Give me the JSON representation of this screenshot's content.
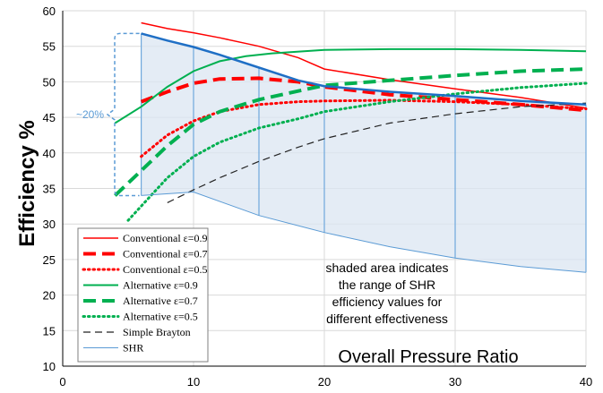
{
  "chart_data": {
    "type": "line",
    "title": "",
    "xlabel": "Overall Pressure Ratio",
    "ylabel": "Efficiency %",
    "xlim": [
      0,
      40
    ],
    "ylim": [
      10,
      60
    ],
    "xticks": [
      0,
      10,
      20,
      30,
      40
    ],
    "yticks": [
      10,
      15,
      20,
      25,
      30,
      35,
      40,
      45,
      50,
      55,
      60
    ],
    "grid": true,
    "legend_position": "bottom-left",
    "series": [
      {
        "name": "Conventional ε=0.9",
        "color": "#ff0000",
        "style": "solid",
        "width": 1.5,
        "x": [
          6,
          8,
          10,
          12,
          15,
          18,
          20,
          25,
          30,
          35,
          40
        ],
        "y": [
          58.3,
          57.5,
          56.9,
          56.2,
          55.0,
          53.4,
          51.8,
          50.3,
          49.0,
          47.8,
          46.3
        ]
      },
      {
        "name": "Conventional ε=0.7",
        "color": "#ff0000",
        "style": "dash-heavy",
        "width": 4,
        "x": [
          6,
          8,
          10,
          12,
          15,
          18,
          20,
          25,
          30,
          35,
          40
        ],
        "y": [
          47.2,
          48.6,
          49.8,
          50.4,
          50.5,
          50.0,
          49.3,
          48.2,
          47.5,
          46.8,
          46.0
        ]
      },
      {
        "name": "Conventional ε=0.5",
        "color": "#ff0000",
        "style": "dot",
        "width": 3,
        "x": [
          6,
          8,
          10,
          12,
          15,
          18,
          20,
          25,
          30,
          35,
          40
        ],
        "y": [
          39.5,
          42.5,
          44.5,
          45.8,
          46.8,
          47.2,
          47.3,
          47.4,
          47.2,
          46.8,
          46.2
        ]
      },
      {
        "name": "Alternative ε=0.9",
        "color": "#00b050",
        "style": "solid",
        "width": 2,
        "x": [
          4,
          6,
          8,
          10,
          12,
          14,
          16,
          20,
          25,
          30,
          35,
          40
        ],
        "y": [
          44.2,
          46.5,
          49.3,
          51.5,
          52.9,
          53.6,
          54.0,
          54.5,
          54.6,
          54.6,
          54.5,
          54.3
        ]
      },
      {
        "name": "Alternative ε=0.7",
        "color": "#00b050",
        "style": "dash-heavy",
        "width": 4,
        "x": [
          4,
          6,
          8,
          10,
          12,
          15,
          18,
          20,
          25,
          30,
          35,
          40
        ],
        "y": [
          34.0,
          37.5,
          41.0,
          44.0,
          45.8,
          47.5,
          48.7,
          49.5,
          50.2,
          50.9,
          51.5,
          51.8
        ]
      },
      {
        "name": "Alternative ε=0.5",
        "color": "#00b050",
        "style": "dot",
        "width": 3,
        "x": [
          5,
          6,
          8,
          10,
          12,
          15,
          18,
          20,
          25,
          30,
          35,
          40
        ],
        "y": [
          30.5,
          32.5,
          36.5,
          39.5,
          41.5,
          43.5,
          44.8,
          45.8,
          47.2,
          48.3,
          49.2,
          49.8
        ]
      },
      {
        "name": "Simple Brayton",
        "color": "#222222",
        "style": "dash",
        "width": 1.2,
        "x": [
          8,
          10,
          12,
          15,
          18,
          20,
          25,
          30,
          35,
          40
        ],
        "y": [
          33.0,
          34.8,
          36.5,
          38.8,
          40.8,
          42.0,
          44.2,
          45.5,
          46.5,
          47.0
        ]
      },
      {
        "name": "SHR",
        "color": "#5b9bd5",
        "style": "solid",
        "width": 1,
        "x": [
          6,
          10,
          15,
          20,
          25,
          30,
          35,
          40
        ],
        "y": [
          34.0,
          34.5,
          31.2,
          28.8,
          26.8,
          25.2,
          24.0,
          23.2
        ]
      }
    ],
    "shr_upper": {
      "color": "#1f6fc5",
      "x": [
        6,
        8,
        10,
        12,
        15,
        18,
        20,
        25,
        30,
        35,
        40
      ],
      "y": [
        56.8,
        55.8,
        54.9,
        53.8,
        52.0,
        50.2,
        49.4,
        48.6,
        48.0,
        47.3,
        46.8
      ]
    },
    "shaded_region_color": "#dbe5f1",
    "drop_lines_x": [
      6,
      10,
      15,
      20,
      30,
      40
    ],
    "annotation": "shaded area indicates the range of SHR efficiency values for different effectiveness",
    "annotation_lines": [
      "shaded area indicates",
      "the range of SHR",
      "efficiency values for",
      "different effectiveness"
    ],
    "brace_label": "~20%",
    "brace_range": [
      34.0,
      56.8
    ]
  }
}
